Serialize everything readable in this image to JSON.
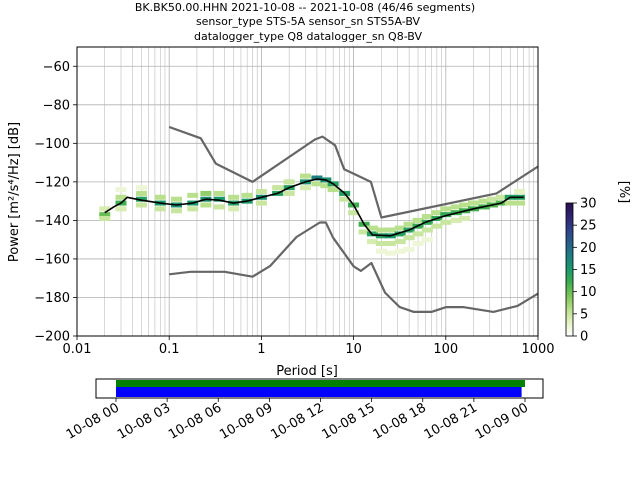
{
  "title_lines": [
    "BK.BK50.00.HHN   2021-10-08 -- 2021-10-08  (46/46 segments)",
    "sensor_type STS-5A sensor_sn STS5A-BV",
    "datalogger_type Q8 datalogger_sn Q8-BV"
  ],
  "chart_data": {
    "type": "heatmap",
    "xlabel": "Period [s]",
    "ylabel": "Power [m²/s⁴/Hz] [dB]",
    "xscale": "log",
    "xlim": [
      0.01,
      1000
    ],
    "ylim": [
      -200,
      -50
    ],
    "xticks": [
      {
        "value": 0.01,
        "label": "0.01"
      },
      {
        "value": 0.1,
        "label": "0.1"
      },
      {
        "value": 1,
        "label": "1"
      },
      {
        "value": 10,
        "label": "10"
      },
      {
        "value": 100,
        "label": "100"
      },
      {
        "value": 1000,
        "label": "1000"
      }
    ],
    "yticks": [
      {
        "value": -60,
        "label": "−60"
      },
      {
        "value": -80,
        "label": "−80"
      },
      {
        "value": -100,
        "label": "−100"
      },
      {
        "value": -120,
        "label": "−120"
      },
      {
        "value": -140,
        "label": "−140"
      },
      {
        "value": -160,
        "label": "−160"
      },
      {
        "value": -180,
        "label": "−180"
      },
      {
        "value": -200,
        "label": "−200"
      }
    ],
    "grid": true,
    "colorbar": {
      "label": "[%]",
      "min": 0,
      "max": 30,
      "ticks": [
        {
          "value": 0,
          "label": "0"
        },
        {
          "value": 5,
          "label": "5"
        },
        {
          "value": 10,
          "label": "10"
        },
        {
          "value": 15,
          "label": "15"
        },
        {
          "value": 20,
          "label": "20"
        },
        {
          "value": 25,
          "label": "25"
        },
        {
          "value": 30,
          "label": "30"
        }
      ],
      "colormap": [
        "#ffffff",
        "#e6f2c4",
        "#b9e08c",
        "#7cc658",
        "#3fae4f",
        "#1a9a6a",
        "#1e7e82",
        "#285f8a",
        "#30428a",
        "#2e2470",
        "#2a0f4e"
      ]
    },
    "high_noise_model": [
      [
        0.1,
        -91.5
      ],
      [
        0.22,
        -97.4
      ],
      [
        0.32,
        -110.5
      ],
      [
        0.8,
        -120
      ],
      [
        3.8,
        -98
      ],
      [
        4.6,
        -96.5
      ],
      [
        6.3,
        -101
      ],
      [
        7.9,
        -113.5
      ],
      [
        15.4,
        -120
      ],
      [
        20,
        -138.5
      ],
      [
        354.8,
        -126
      ],
      [
        1000,
        -112
      ]
    ],
    "low_noise_model": [
      [
        0.1,
        -168
      ],
      [
        0.17,
        -166.7
      ],
      [
        0.4,
        -166.7
      ],
      [
        0.8,
        -169.2
      ],
      [
        1.24,
        -163.7
      ],
      [
        2.4,
        -148.6
      ],
      [
        4.3,
        -141.1
      ],
      [
        5,
        -141.1
      ],
      [
        6,
        -149
      ],
      [
        10,
        -163.8
      ],
      [
        12,
        -166.2
      ],
      [
        15.6,
        -162.1
      ],
      [
        21.9,
        -177.5
      ],
      [
        31.6,
        -185
      ],
      [
        45,
        -187.5
      ],
      [
        70,
        -187.5
      ],
      [
        101,
        -185
      ],
      [
        154,
        -185
      ],
      [
        328,
        -187.5
      ],
      [
        600,
        -184.4
      ],
      [
        1000,
        -178
      ]
    ],
    "mean_psd": [
      [
        0.02,
        -136
      ],
      [
        0.025,
        -133
      ],
      [
        0.03,
        -131
      ],
      [
        0.035,
        -128
      ],
      [
        0.05,
        -129.5
      ],
      [
        0.08,
        -131
      ],
      [
        0.12,
        -132
      ],
      [
        0.18,
        -131
      ],
      [
        0.25,
        -129
      ],
      [
        0.35,
        -129.5
      ],
      [
        0.5,
        -131
      ],
      [
        0.7,
        -130
      ],
      [
        1,
        -128
      ],
      [
        1.5,
        -126
      ],
      [
        2,
        -123
      ],
      [
        3,
        -120
      ],
      [
        4,
        -118.5
      ],
      [
        5,
        -119
      ],
      [
        6,
        -121
      ],
      [
        8,
        -126
      ],
      [
        10,
        -132
      ],
      [
        13,
        -142
      ],
      [
        16,
        -147.5
      ],
      [
        25,
        -148
      ],
      [
        40,
        -145
      ],
      [
        60,
        -141
      ],
      [
        100,
        -137.5
      ],
      [
        200,
        -134
      ],
      [
        400,
        -131
      ],
      [
        500,
        -128
      ],
      [
        700,
        -128
      ]
    ],
    "density_cells": [
      [
        0.02,
        -137,
        10
      ],
      [
        0.02,
        -139,
        5
      ],
      [
        0.02,
        -134,
        4
      ],
      [
        0.03,
        -131,
        12
      ],
      [
        0.03,
        -128,
        6
      ],
      [
        0.03,
        -124,
        2
      ],
      [
        0.03,
        -134,
        4
      ],
      [
        0.05,
        -129,
        14
      ],
      [
        0.05,
        -126,
        6
      ],
      [
        0.05,
        -132,
        5
      ],
      [
        0.05,
        -123,
        2
      ],
      [
        0.08,
        -131,
        15
      ],
      [
        0.08,
        -128,
        6
      ],
      [
        0.08,
        -134,
        5
      ],
      [
        0.12,
        -132,
        16
      ],
      [
        0.12,
        -129,
        6
      ],
      [
        0.12,
        -135,
        5
      ],
      [
        0.18,
        -131,
        15
      ],
      [
        0.18,
        -127,
        6
      ],
      [
        0.18,
        -134,
        5
      ],
      [
        0.25,
        -129,
        16
      ],
      [
        0.25,
        -126,
        8
      ],
      [
        0.25,
        -132,
        6
      ],
      [
        0.35,
        -129,
        15
      ],
      [
        0.35,
        -126,
        6
      ],
      [
        0.35,
        -133,
        5
      ],
      [
        0.5,
        -131,
        14
      ],
      [
        0.5,
        -128,
        6
      ],
      [
        0.5,
        -134,
        4
      ],
      [
        0.7,
        -130,
        15
      ],
      [
        0.7,
        -127,
        6
      ],
      [
        1,
        -128,
        16
      ],
      [
        1,
        -125,
        5
      ],
      [
        1,
        -131,
        5
      ],
      [
        1.5,
        -126,
        14
      ],
      [
        1.5,
        -123,
        5
      ],
      [
        2,
        -123,
        14
      ],
      [
        2,
        -120,
        5
      ],
      [
        2,
        -126,
        5
      ],
      [
        3,
        -120,
        16
      ],
      [
        3,
        -117,
        6
      ],
      [
        3,
        -123,
        4
      ],
      [
        4,
        -118,
        18
      ],
      [
        4,
        -121,
        6
      ],
      [
        5,
        -119,
        16
      ],
      [
        5,
        -122,
        6
      ],
      [
        6,
        -121,
        14
      ],
      [
        6,
        -124,
        6
      ],
      [
        8,
        -126,
        14
      ],
      [
        8,
        -129,
        5
      ],
      [
        10,
        -132,
        12
      ],
      [
        10,
        -136,
        5
      ],
      [
        13,
        -142,
        12
      ],
      [
        13,
        -146,
        5
      ],
      [
        16,
        -147,
        14
      ],
      [
        16,
        -144,
        6
      ],
      [
        16,
        -151,
        4
      ],
      [
        20,
        -148,
        14
      ],
      [
        20,
        -145,
        6
      ],
      [
        20,
        -152,
        5
      ],
      [
        20,
        -156,
        2
      ],
      [
        25,
        -148,
        15
      ],
      [
        25,
        -145,
        6
      ],
      [
        25,
        -152,
        5
      ],
      [
        25,
        -157,
        2
      ],
      [
        32,
        -147,
        14
      ],
      [
        32,
        -144,
        6
      ],
      [
        32,
        -151,
        5
      ],
      [
        32,
        -156,
        2
      ],
      [
        40,
        -145,
        14
      ],
      [
        40,
        -142,
        6
      ],
      [
        40,
        -149,
        5
      ],
      [
        40,
        -155,
        2
      ],
      [
        50,
        -143,
        13
      ],
      [
        50,
        -140,
        6
      ],
      [
        50,
        -147,
        5
      ],
      [
        50,
        -152,
        2
      ],
      [
        63,
        -141,
        13
      ],
      [
        63,
        -138,
        6
      ],
      [
        63,
        -145,
        5
      ],
      [
        63,
        -150,
        2
      ],
      [
        80,
        -139,
        13
      ],
      [
        80,
        -136,
        6
      ],
      [
        80,
        -143,
        5
      ],
      [
        100,
        -137,
        13
      ],
      [
        100,
        -134,
        6
      ],
      [
        100,
        -141,
        5
      ],
      [
        130,
        -136,
        12
      ],
      [
        130,
        -133,
        6
      ],
      [
        130,
        -140,
        4
      ],
      [
        160,
        -135,
        12
      ],
      [
        160,
        -132,
        6
      ],
      [
        160,
        -139,
        4
      ],
      [
        200,
        -134,
        12
      ],
      [
        200,
        -131,
        6
      ],
      [
        260,
        -133,
        12
      ],
      [
        260,
        -130,
        6
      ],
      [
        320,
        -132,
        11
      ],
      [
        320,
        -129,
        5
      ],
      [
        400,
        -131,
        11
      ],
      [
        400,
        -128,
        5
      ],
      [
        500,
        -128,
        14
      ],
      [
        500,
        -131,
        6
      ],
      [
        630,
        -128,
        14
      ],
      [
        630,
        -131,
        6
      ],
      [
        630,
        -125,
        3
      ]
    ]
  },
  "timeline": {
    "start": "2021-10-08 00:00",
    "end": "2021-10-09 00:00",
    "green_bar": {
      "start_hour": 0,
      "end_hour": 24.0
    },
    "blue_bar": {
      "start_hour": 0,
      "end_hour": 23.8
    },
    "colors": {
      "green": "#008000",
      "blue": "#0000ff"
    },
    "tick_labels": [
      "10-08 00",
      "10-08 03",
      "10-08 06",
      "10-08 09",
      "10-08 12",
      "10-08 15",
      "10-08 18",
      "10-08 21",
      "10-09 00"
    ]
  }
}
